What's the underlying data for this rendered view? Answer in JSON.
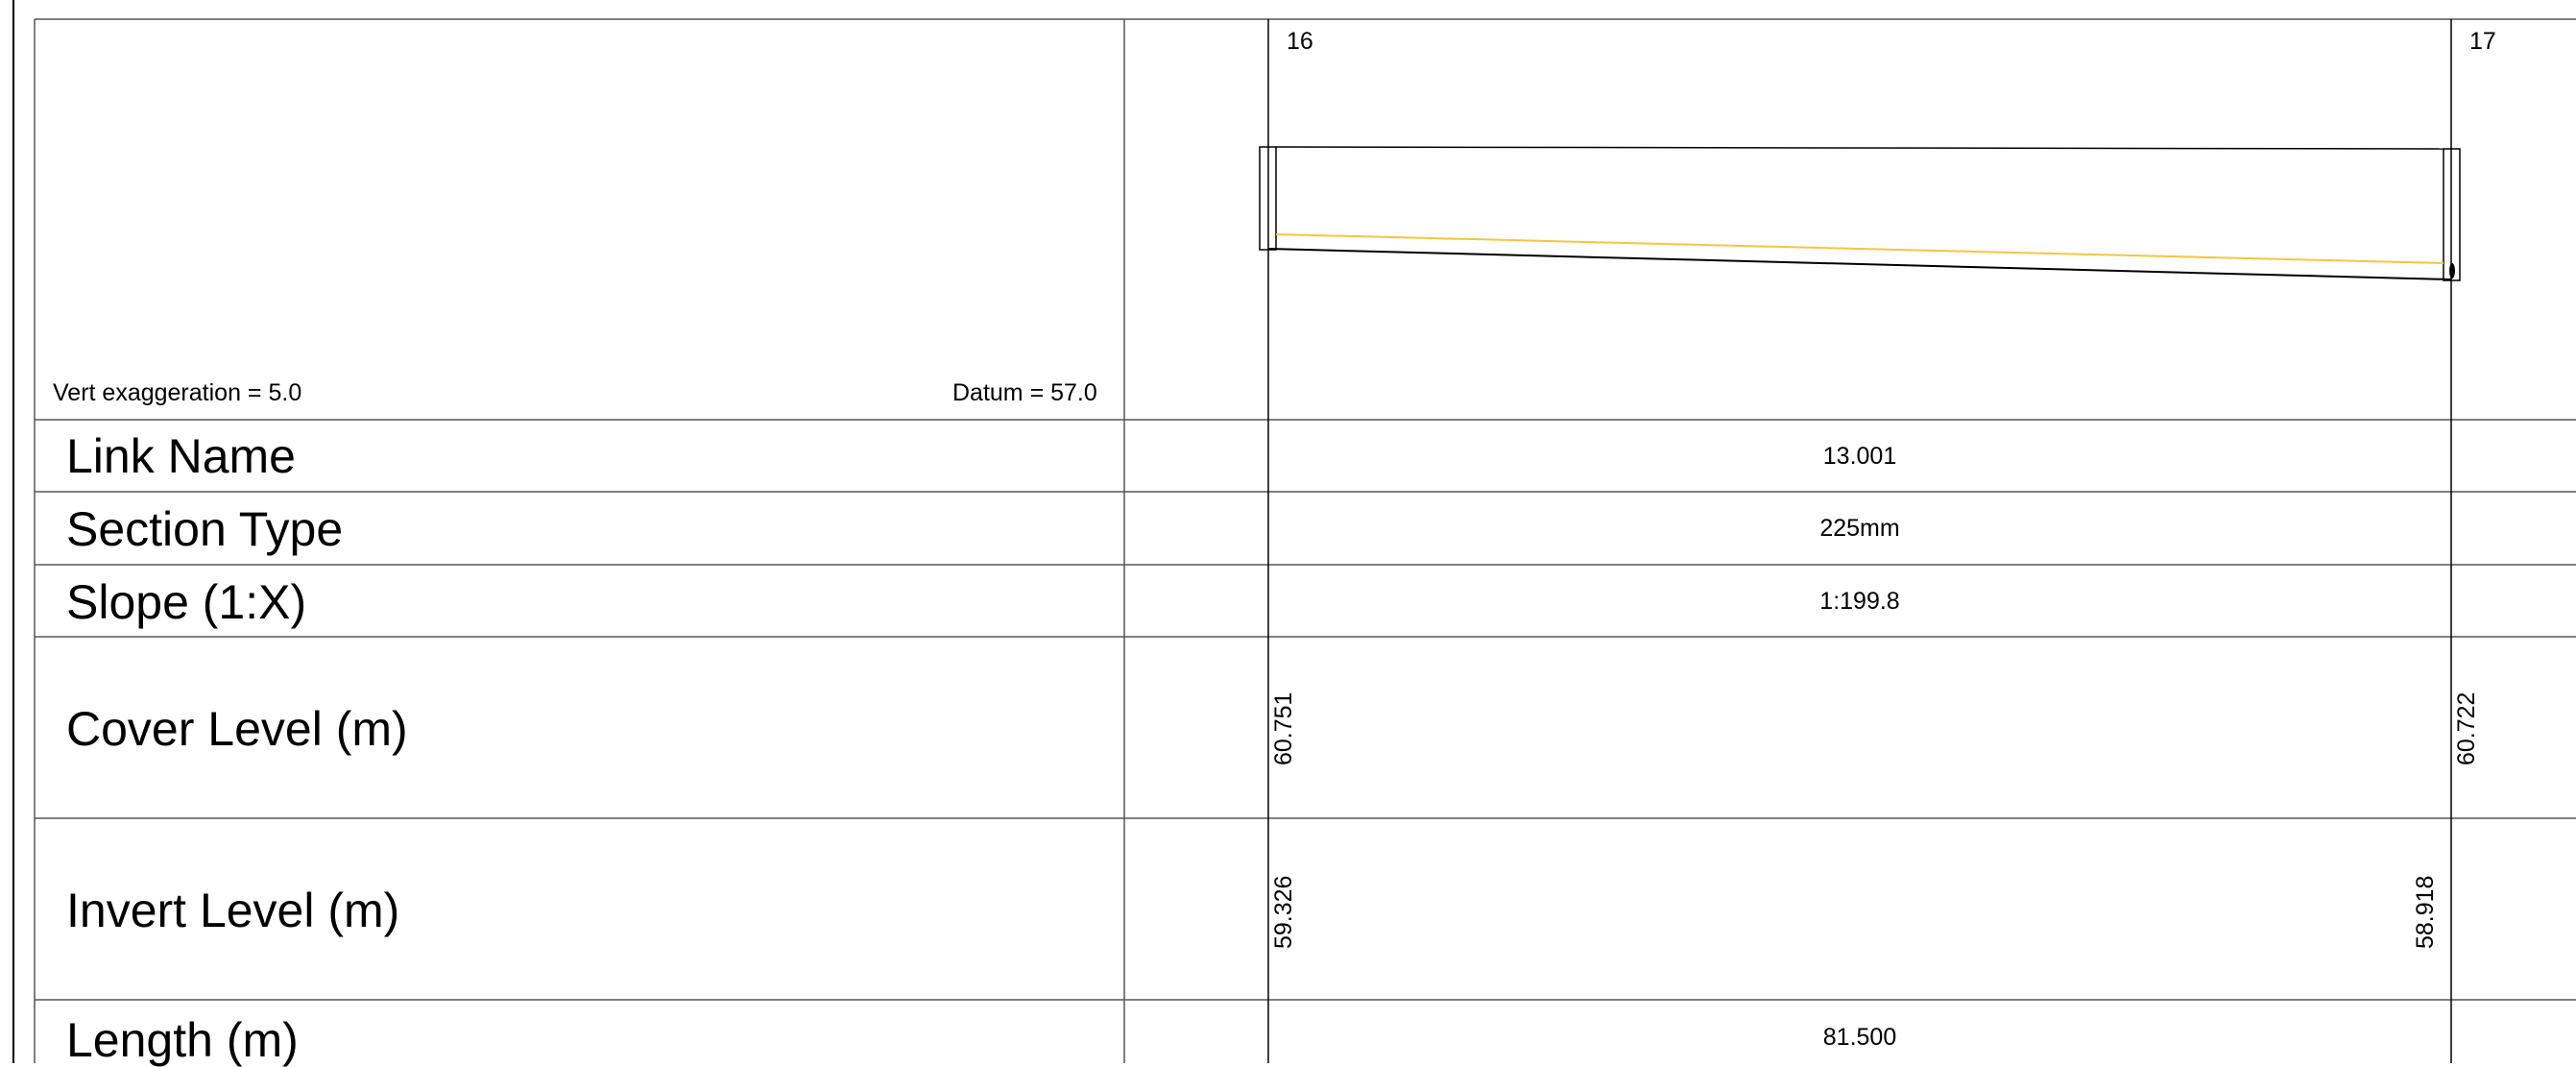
{
  "header": {
    "vert_exaggeration": "Vert exaggeration = 5.0",
    "datum": "Datum = 57.0"
  },
  "nodes": [
    {
      "name": "16",
      "cover_level": "60.751",
      "invert_level": "59.326"
    },
    {
      "name": "17",
      "cover_level": "60.722",
      "invert_level": "58.918"
    }
  ],
  "rows": {
    "link_name": "Link Name",
    "section_type": "Section Type",
    "slope": "Slope (1:X)",
    "cover_level": "Cover Level (m)",
    "invert_level": "Invert Level (m)",
    "length": "Length (m)"
  },
  "link": {
    "name": "13.001",
    "section_type": "225mm",
    "slope": "1:199.8",
    "length": "81.500"
  },
  "colors": {
    "line": "#000000",
    "grid": "#555555",
    "water_level": "#f5c542",
    "background": "#ffffff"
  }
}
